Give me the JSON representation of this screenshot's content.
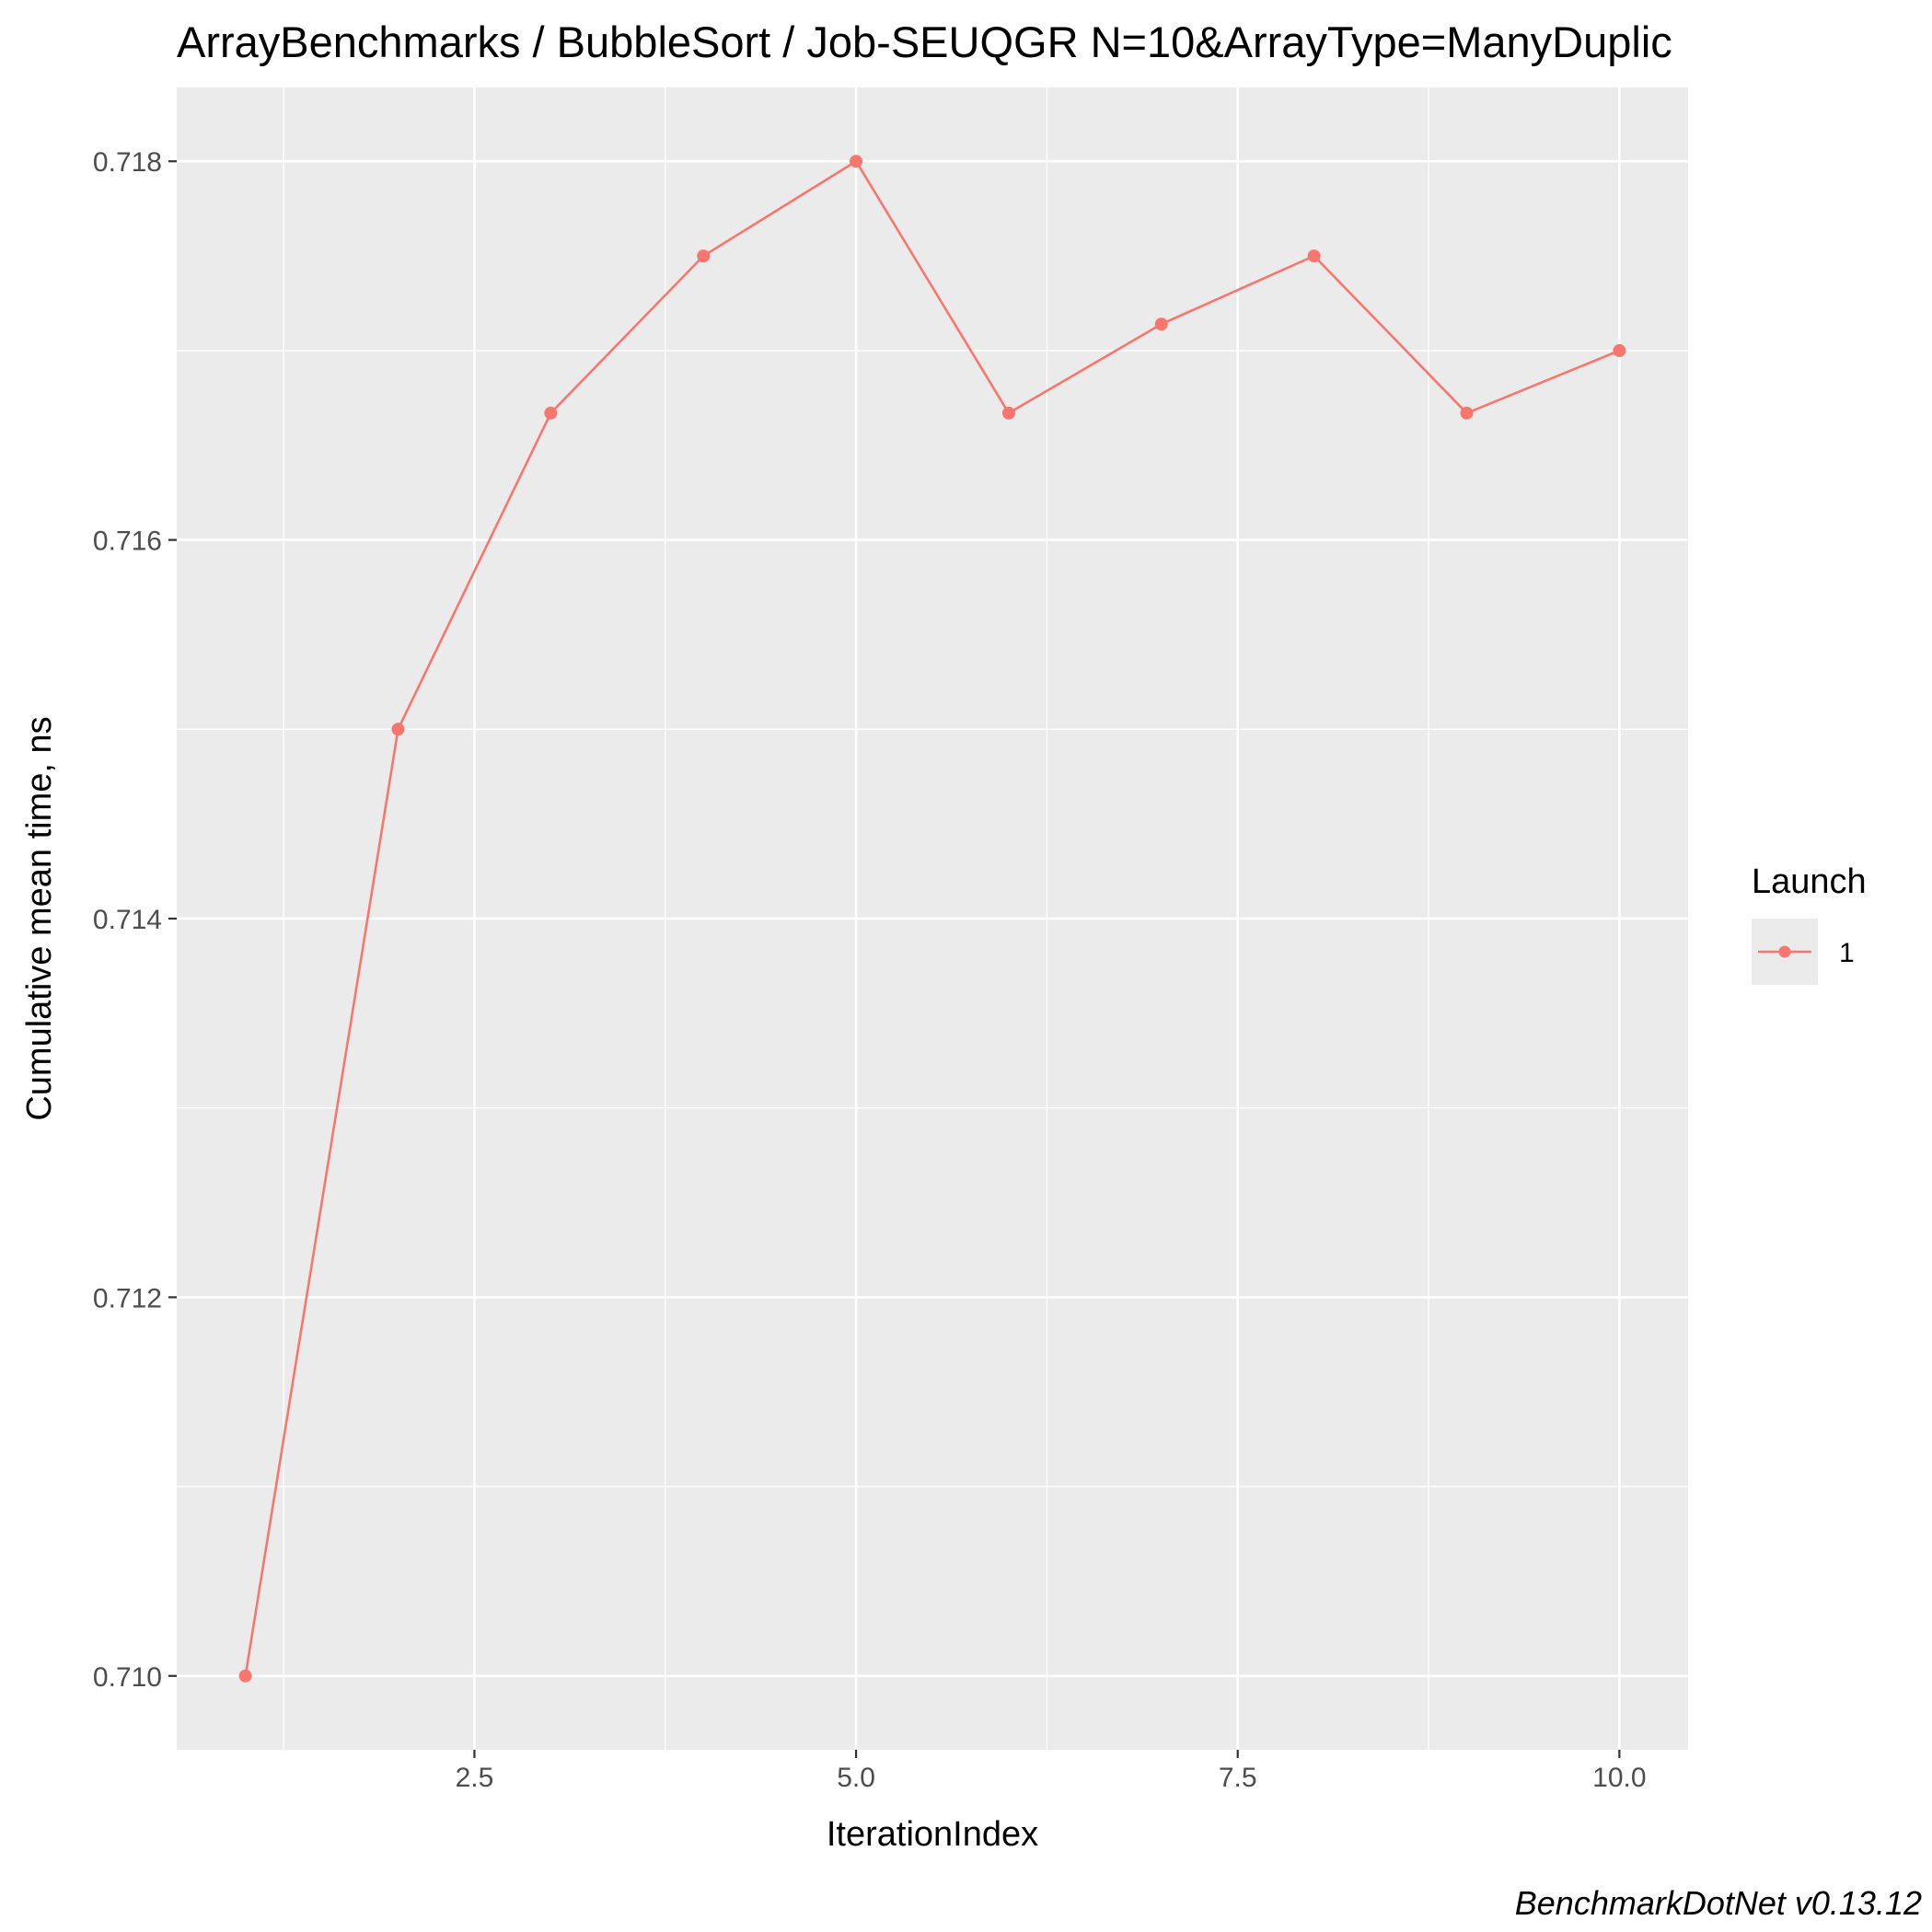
{
  "chart_data": {
    "type": "line",
    "title": "ArrayBenchmarks / BubbleSort / Job-SEUQGR N=10&ArrayType=ManyDuplic",
    "xlabel": "IterationIndex",
    "ylabel": "Cumulative mean time, ns",
    "caption": "BenchmarkDotNet v0.13.12",
    "x": [
      1,
      2,
      3,
      4,
      5,
      6,
      7,
      8,
      9,
      10
    ],
    "series": [
      {
        "name": "1",
        "color": "#f8766d",
        "values": [
          0.71,
          0.715,
          0.71667,
          0.7175,
          0.718,
          0.71667,
          0.71714,
          0.7175,
          0.71667,
          0.717
        ]
      }
    ],
    "xlim": [
      0.55,
      10.45
    ],
    "ylim": [
      0.70961,
      0.71839
    ],
    "x_ticks": [
      2.5,
      5.0,
      7.5,
      10.0
    ],
    "x_tick_labels": [
      "2.5",
      "5.0",
      "7.5",
      "10.0"
    ],
    "y_ticks": [
      0.71,
      0.712,
      0.714,
      0.716,
      0.718
    ],
    "y_tick_labels": [
      "0.710",
      "0.712",
      "0.714",
      "0.716",
      "0.718"
    ],
    "legend": {
      "title": "Launch",
      "position": "right",
      "entries": [
        "1"
      ]
    },
    "grid": true,
    "panel_background": "#ebebeb"
  }
}
